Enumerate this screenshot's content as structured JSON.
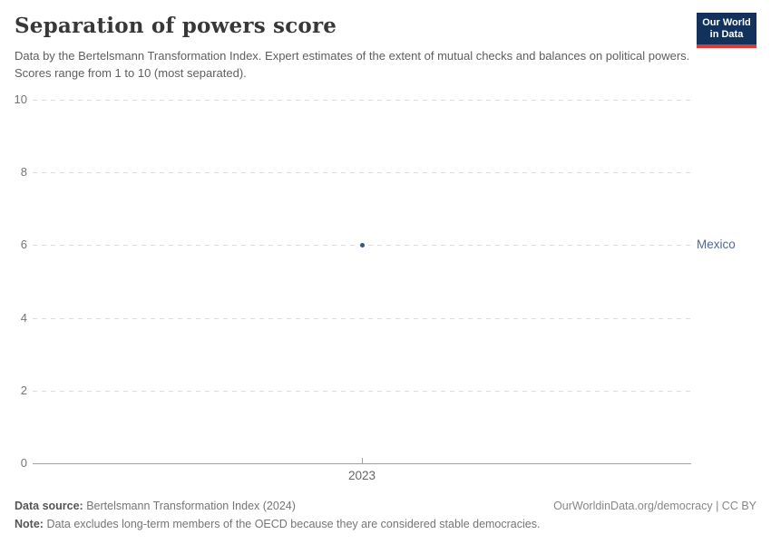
{
  "header": {
    "title": "Separation of powers score",
    "subtitle": "Data by the Bertelsmann Transformation Index. Expert estimates of the extent of mutual checks and balances on political powers. Scores range from 1 to 10 (most separated)."
  },
  "logo": {
    "line1": "Our World",
    "line2": "in Data",
    "bg_color": "#12325B",
    "accent_color": "#D93A34"
  },
  "chart_data": {
    "type": "scatter",
    "title": "Separation of powers score",
    "xlabel": "",
    "ylabel": "",
    "xlim": [
      2022.5,
      2023.5
    ],
    "ylim": [
      0,
      10
    ],
    "yticks": [
      0,
      2,
      4,
      6,
      8,
      10
    ],
    "xticks": [
      2023
    ],
    "grid": "horizontal-dashed",
    "legend_position": "right-entity-label",
    "series": [
      {
        "name": "Mexico",
        "color": "#3A5487",
        "label_color": "#4C6A9C",
        "points": [
          {
            "x": 2023,
            "y": 6
          }
        ]
      }
    ]
  },
  "footer": {
    "datasource_label": "Data source:",
    "datasource_value": "Bertelsmann Transformation Index (2024)",
    "note_label": "Note:",
    "note_value": "Data excludes long-term members of the OECD because they are considered stable democracies.",
    "license": "OurWorldinData.org/democracy | CC BY"
  }
}
